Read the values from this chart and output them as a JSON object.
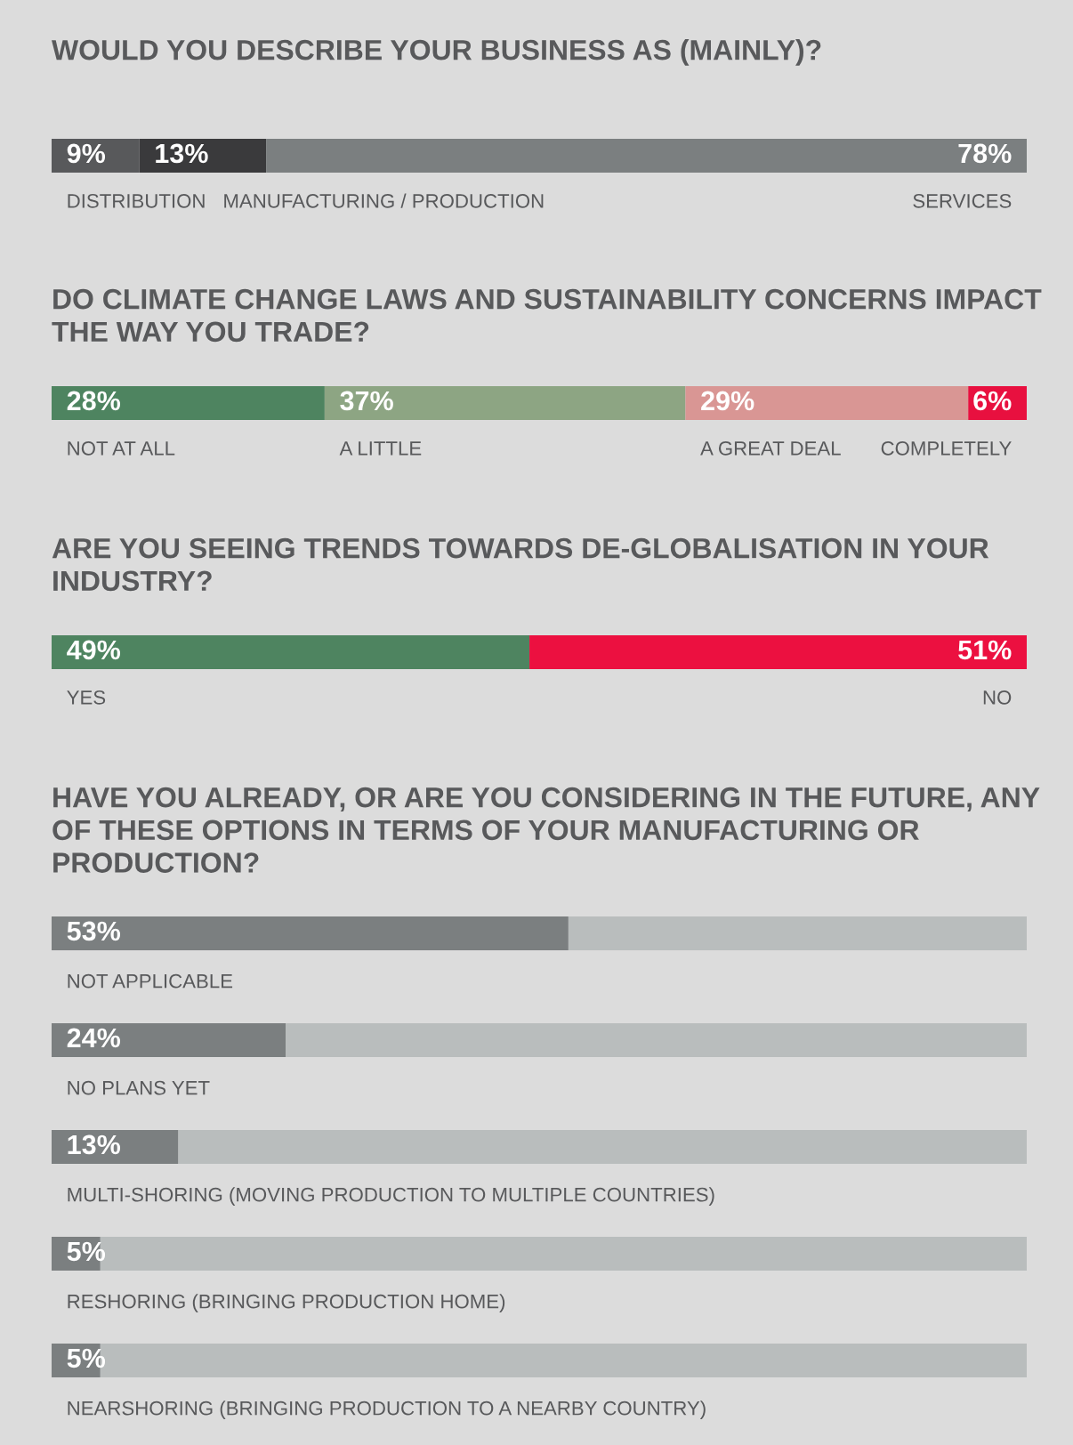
{
  "chart_data": [
    {
      "type": "bar",
      "orientation": "horizontal",
      "stacked": true,
      "title": "WOULD YOU DESCRIBE YOUR BUSINESS AS (MAINLY)?",
      "categories": [
        null
      ],
      "xlim": [
        0,
        100
      ],
      "series": [
        {
          "name": "DISTRIBUTION",
          "color": "#58595b",
          "values": [
            9
          ],
          "value_labels": [
            "9%"
          ]
        },
        {
          "name": "MANUFACTURING / PRODUCTION",
          "color": "#3a3a3c",
          "values": [
            13
          ],
          "value_labels": [
            "13%"
          ]
        },
        {
          "name": "SERVICES",
          "color": "#7b7f80",
          "values": [
            78
          ],
          "value_labels": [
            "78%"
          ]
        }
      ]
    },
    {
      "type": "bar",
      "orientation": "horizontal",
      "stacked": true,
      "title": "DO CLIMATE CHANGE LAWS AND SUSTAINABILITY CONCERNS IMPACT THE WAY YOU TRADE?",
      "categories": [
        null
      ],
      "xlim": [
        0,
        100
      ],
      "series": [
        {
          "name": "NOT AT ALL",
          "color": "#4e8460",
          "values": [
            28
          ],
          "value_labels": [
            "28%"
          ]
        },
        {
          "name": "A LITTLE",
          "color": "#8da583",
          "values": [
            37
          ],
          "value_labels": [
            "37%"
          ]
        },
        {
          "name": "A GREAT DEAL",
          "color": "#d99694",
          "values": [
            29
          ],
          "value_labels": [
            "29%"
          ]
        },
        {
          "name": "COMPLETELY",
          "color": "#e8103f",
          "values": [
            6
          ],
          "value_labels": [
            "6%"
          ]
        }
      ]
    },
    {
      "type": "bar",
      "orientation": "horizontal",
      "stacked": true,
      "title": "ARE YOU SEEING TRENDS TOWARDS DE-GLOBALISATION IN YOUR INDUSTRY?",
      "categories": [
        null
      ],
      "xlim": [
        0,
        100
      ],
      "series": [
        {
          "name": "YES",
          "color": "#4e8460",
          "values": [
            49
          ],
          "value_labels": [
            "49%"
          ]
        },
        {
          "name": "NO",
          "color": "#ec1040",
          "values": [
            51
          ],
          "value_labels": [
            "51%"
          ]
        }
      ]
    },
    {
      "type": "bar",
      "orientation": "horizontal",
      "stacked": true,
      "title": "HAVE YOU ALREADY, OR ARE YOU CONSIDERING IN THE FUTURE, ANY OF THESE OPTIONS IN TERMS OF YOUR MANUFACTURING OR PRODUCTION?",
      "categories": [
        "NOT APPLICABLE",
        "NO PLANS YET",
        "MULTI-SHORING (MOVING PRODUCTION TO MULTIPLE COUNTRIES)",
        "RESHORING (BRINGING PRODUCTION HOME)",
        "NEARSHORING (BRINGING PRODUCTION TO A NEARBY COUNTRY)"
      ],
      "xlim": [
        0,
        100
      ],
      "series": [
        {
          "color": "#7b7f80",
          "values": [
            53,
            24,
            13,
            5,
            5
          ],
          "value_labels": [
            "53%",
            "24%",
            "13%",
            "5%",
            "5%"
          ]
        },
        {
          "color": "#b9bdbd",
          "values": [
            47,
            76,
            87,
            95,
            95
          ]
        }
      ]
    }
  ]
}
